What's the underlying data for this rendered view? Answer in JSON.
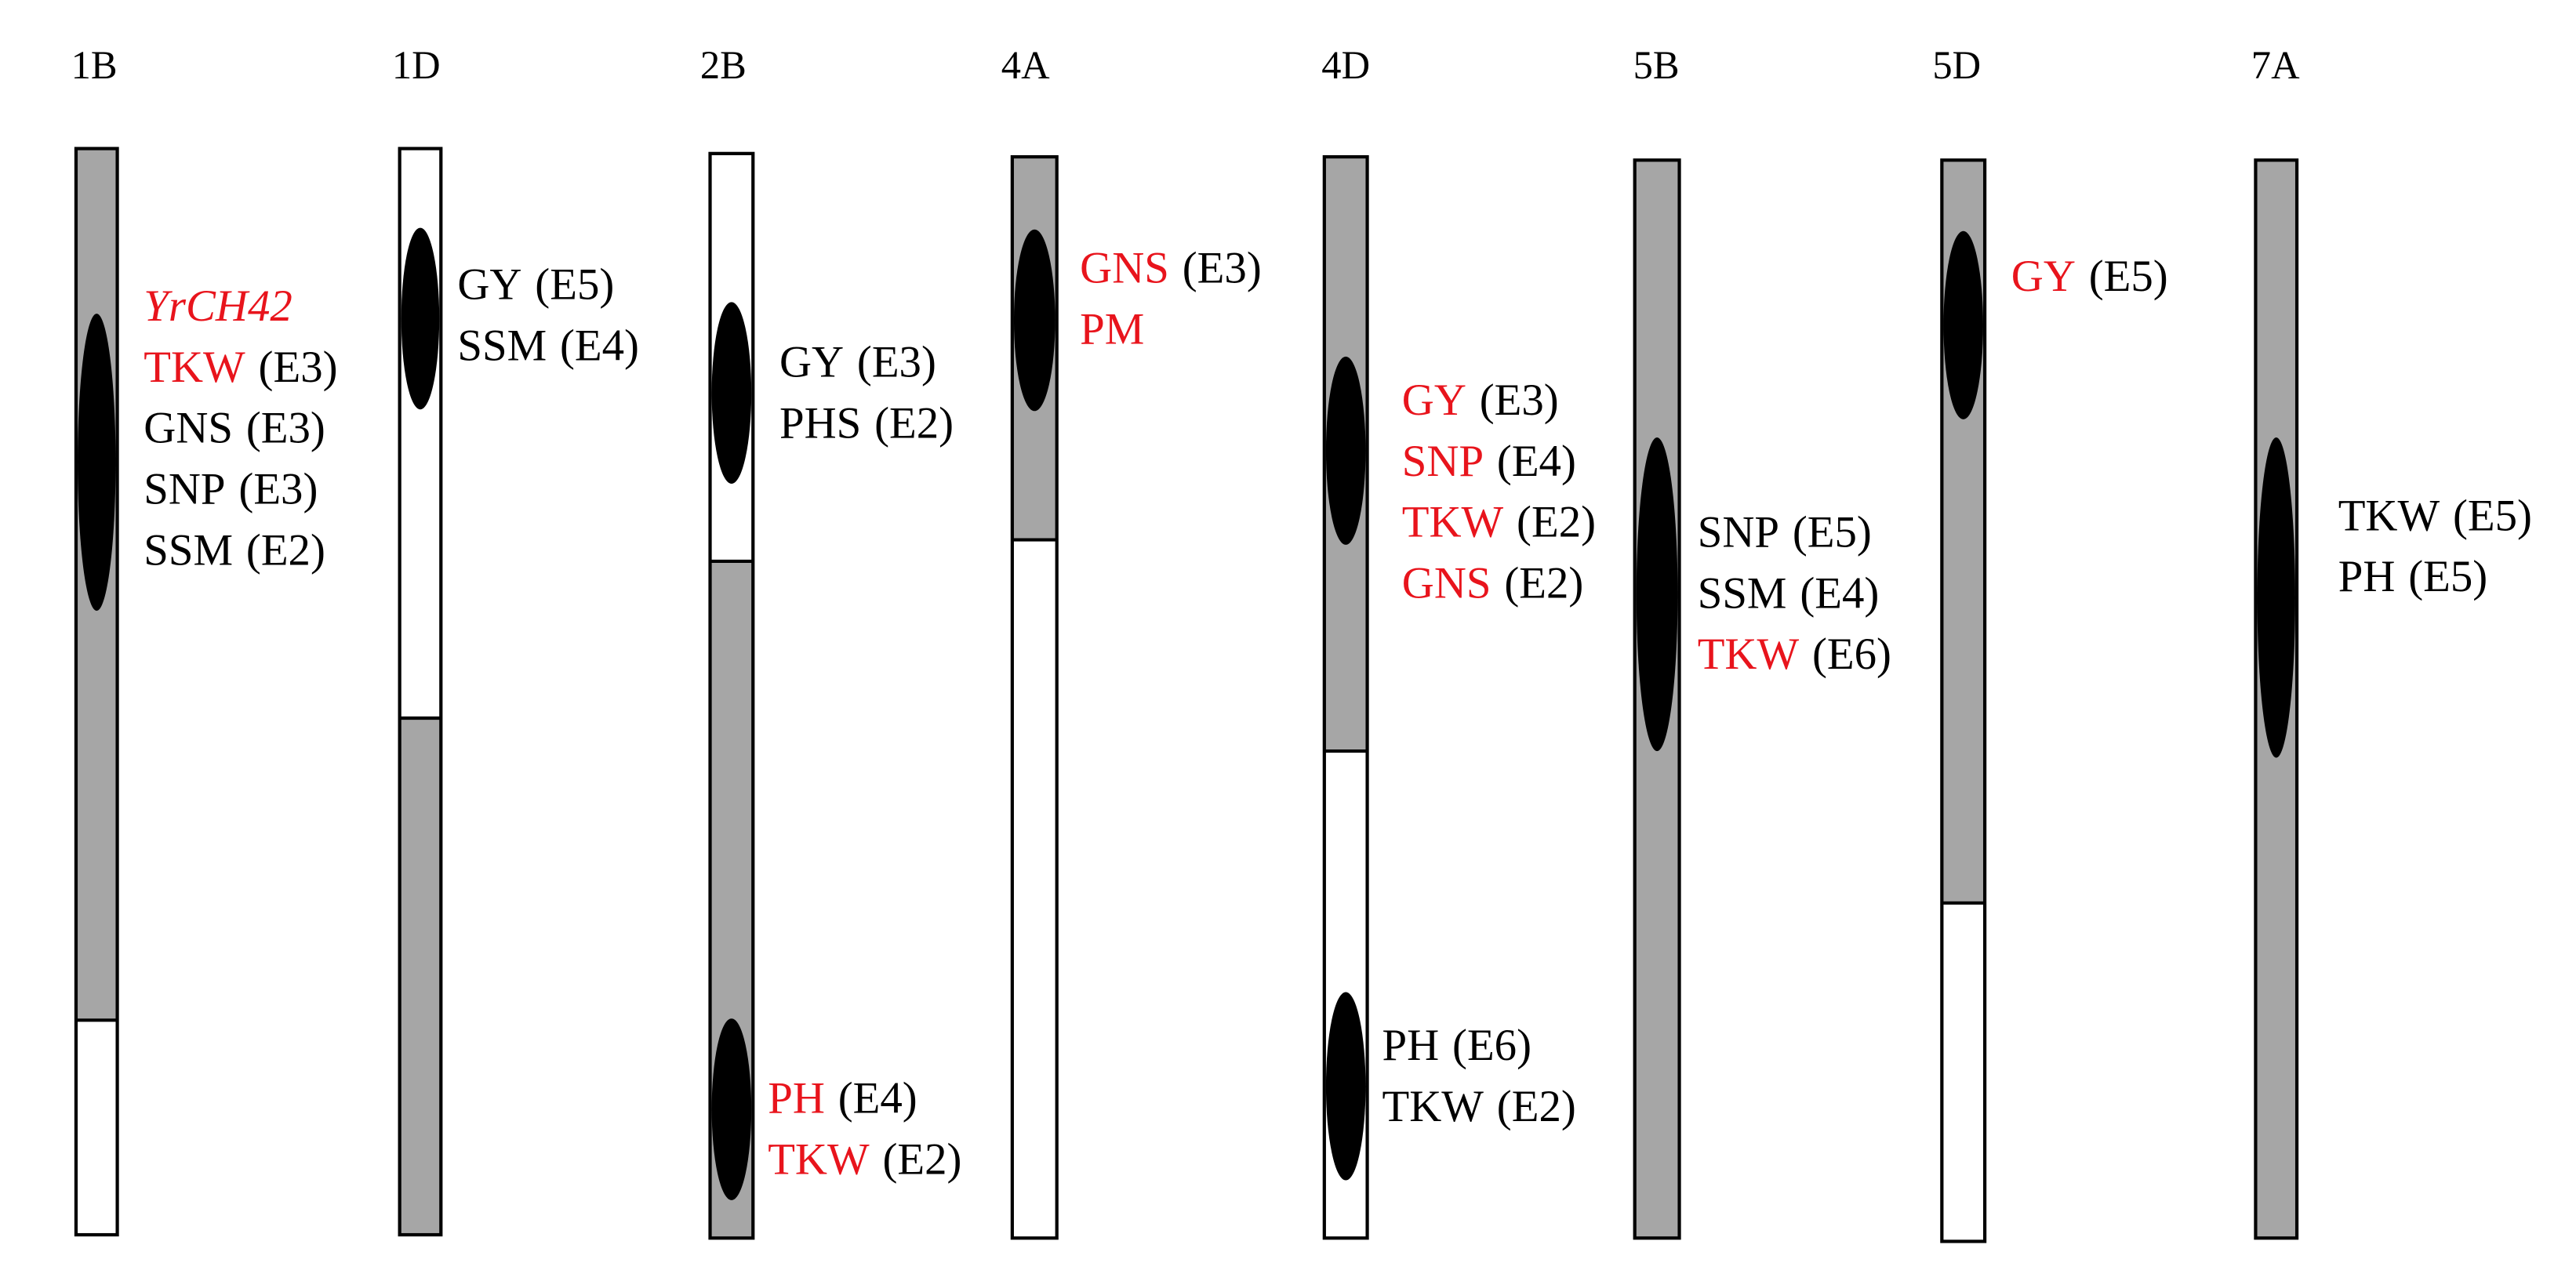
{
  "chromosomes": [
    {
      "name": "1B",
      "qtl": [
        {
          "labels": [
            {
              "trait": "YrCH42",
              "color": "red",
              "italic": true
            },
            {
              "trait": "TKW",
              "env": "(E3)",
              "color": "red"
            },
            {
              "trait": "GNS",
              "env": "(E3)",
              "color": "black"
            },
            {
              "trait": "SNP",
              "env": "(E3)",
              "color": "black"
            },
            {
              "trait": "SSM",
              "env": "(E2)",
              "color": "black"
            }
          ]
        }
      ]
    },
    {
      "name": "1D",
      "qtl": [
        {
          "labels": [
            {
              "trait": "GY",
              "env": "(E5)",
              "color": "black"
            },
            {
              "trait": "SSM",
              "env": "(E4)",
              "color": "black"
            }
          ]
        }
      ]
    },
    {
      "name": "2B",
      "qtl": [
        {
          "labels": [
            {
              "trait": "GY",
              "env": "(E3)",
              "color": "black"
            },
            {
              "trait": "PHS",
              "env": "(E2)",
              "color": "black"
            }
          ]
        },
        {
          "labels": [
            {
              "trait": "PH",
              "env": "(E4)",
              "color": "red"
            },
            {
              "trait": "TKW",
              "env": "(E2)",
              "color": "red"
            }
          ]
        }
      ]
    },
    {
      "name": "4A",
      "qtl": [
        {
          "labels": [
            {
              "trait": "GNS",
              "env": "(E3)",
              "color": "red"
            },
            {
              "trait": "PM",
              "color": "red"
            }
          ]
        }
      ]
    },
    {
      "name": "4D",
      "qtl": [
        {
          "labels": [
            {
              "trait": "GY",
              "env": "(E3)",
              "color": "red"
            },
            {
              "trait": "SNP",
              "env": "(E4)",
              "color": "red"
            },
            {
              "trait": "TKW",
              "env": "(E2)",
              "color": "red"
            },
            {
              "trait": "GNS",
              "env": "(E2)",
              "color": "red"
            }
          ]
        },
        {
          "labels": [
            {
              "trait": "PH",
              "env": "(E6)",
              "color": "black"
            },
            {
              "trait": "TKW",
              "env": "(E2)",
              "color": "black"
            }
          ]
        }
      ]
    },
    {
      "name": "5B",
      "qtl": [
        {
          "labels": [
            {
              "trait": "SNP",
              "env": "(E5)",
              "color": "black"
            },
            {
              "trait": "SSM",
              "env": "(E4)",
              "color": "black"
            },
            {
              "trait": "TKW",
              "env": "(E6)",
              "color": "red"
            }
          ]
        }
      ]
    },
    {
      "name": "5D",
      "qtl": [
        {
          "labels": [
            {
              "trait": "GY",
              "env": "(E5)",
              "color": "red"
            }
          ]
        }
      ]
    },
    {
      "name": "7A",
      "qtl": [
        {
          "labels": [
            {
              "trait": "TKW",
              "env": "(E5)",
              "color": "black"
            },
            {
              "trait": "PH",
              "env": "(E5)",
              "color": "black"
            }
          ]
        }
      ]
    }
  ]
}
